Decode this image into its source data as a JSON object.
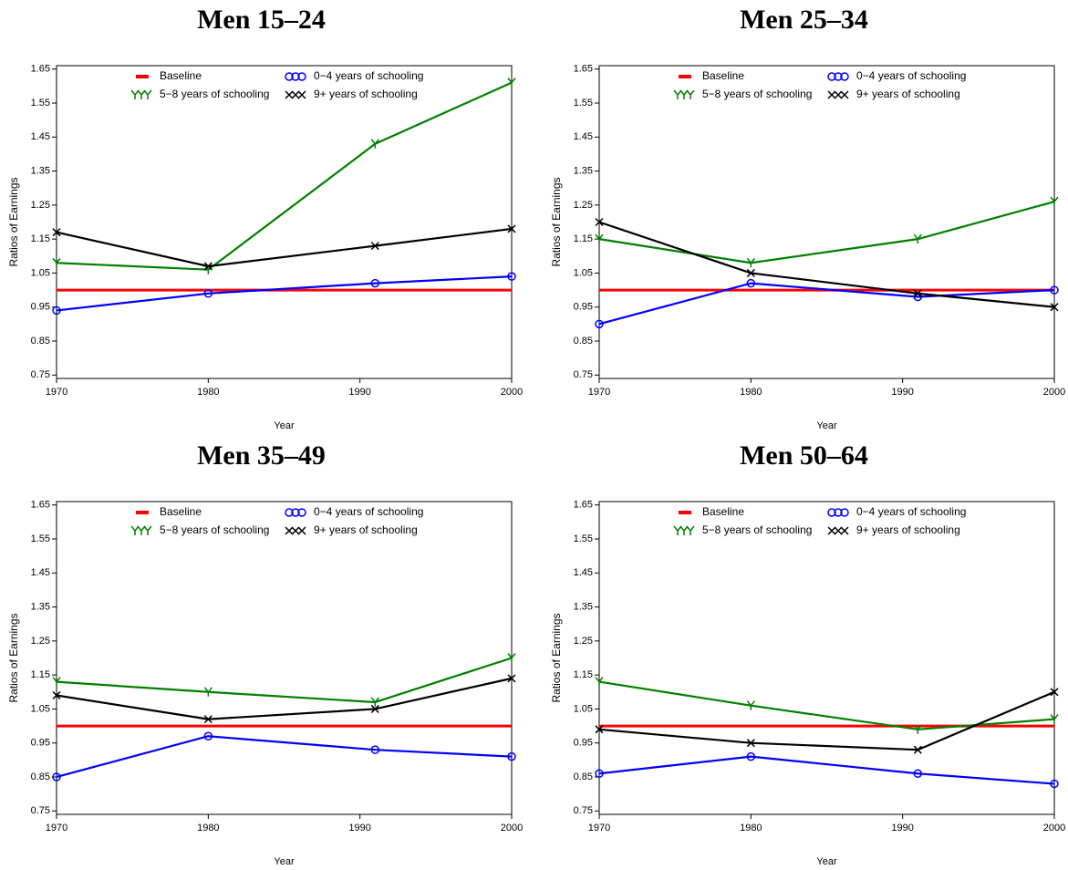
{
  "chart_data": [
    {
      "type": "line",
      "title": "Men 15–24",
      "x_label": "Year",
      "y_label": "Ratios of Earnings",
      "x": [
        1970,
        1980,
        1991,
        2000
      ],
      "xlim": [
        1970,
        2000
      ],
      "xticks": [
        1970,
        1980,
        1990,
        2000
      ],
      "ylim": [
        0.74,
        1.66
      ],
      "yticks": [
        0.75,
        0.85,
        0.95,
        1.05,
        1.15,
        1.25,
        1.35,
        1.45,
        1.55,
        1.65
      ],
      "legend": "top",
      "series": [
        {
          "name": "Baseline",
          "color": "#ff0000",
          "marker": "none",
          "values": [
            1.0,
            1.0,
            1.0,
            1.0
          ]
        },
        {
          "name": "0−4 years of schooling",
          "color": "#0000ff",
          "marker": "circle",
          "values": [
            0.94,
            0.99,
            1.02,
            1.04
          ]
        },
        {
          "name": "5−8 years of schooling",
          "color": "#008000",
          "marker": "y",
          "values": [
            1.08,
            1.06,
            1.43,
            1.61
          ]
        },
        {
          "name": "9+ years of schooling",
          "color": "#000000",
          "marker": "x",
          "values": [
            1.17,
            1.07,
            1.13,
            1.18
          ]
        }
      ]
    },
    {
      "type": "line",
      "title": "Men 25–34",
      "x_label": "Year",
      "y_label": "Ratios of Earnings",
      "x": [
        1970,
        1980,
        1991,
        2000
      ],
      "xlim": [
        1970,
        2000
      ],
      "xticks": [
        1970,
        1980,
        1990,
        2000
      ],
      "ylim": [
        0.74,
        1.66
      ],
      "yticks": [
        0.75,
        0.85,
        0.95,
        1.05,
        1.15,
        1.25,
        1.35,
        1.45,
        1.55,
        1.65
      ],
      "legend": "top",
      "series": [
        {
          "name": "Baseline",
          "color": "#ff0000",
          "marker": "none",
          "values": [
            1.0,
            1.0,
            1.0,
            1.0
          ]
        },
        {
          "name": "0−4 years of schooling",
          "color": "#0000ff",
          "marker": "circle",
          "values": [
            0.9,
            1.02,
            0.98,
            1.0
          ]
        },
        {
          "name": "5−8 years of schooling",
          "color": "#008000",
          "marker": "y",
          "values": [
            1.15,
            1.08,
            1.15,
            1.26
          ]
        },
        {
          "name": "9+ years of schooling",
          "color": "#000000",
          "marker": "x",
          "values": [
            1.2,
            1.05,
            0.99,
            0.95
          ]
        }
      ]
    },
    {
      "type": "line",
      "title": "Men 35–49",
      "x_label": "Year",
      "y_label": "Ratios of Earnings",
      "x": [
        1970,
        1980,
        1991,
        2000
      ],
      "xlim": [
        1970,
        2000
      ],
      "xticks": [
        1970,
        1980,
        1990,
        2000
      ],
      "ylim": [
        0.74,
        1.66
      ],
      "yticks": [
        0.75,
        0.85,
        0.95,
        1.05,
        1.15,
        1.25,
        1.35,
        1.45,
        1.55,
        1.65
      ],
      "legend": "top",
      "series": [
        {
          "name": "Baseline",
          "color": "#ff0000",
          "marker": "none",
          "values": [
            1.0,
            1.0,
            1.0,
            1.0
          ]
        },
        {
          "name": "0−4 years of schooling",
          "color": "#0000ff",
          "marker": "circle",
          "values": [
            0.85,
            0.97,
            0.93,
            0.91
          ]
        },
        {
          "name": "5−8 years of schooling",
          "color": "#008000",
          "marker": "y",
          "values": [
            1.13,
            1.1,
            1.07,
            1.2
          ]
        },
        {
          "name": "9+ years of schooling",
          "color": "#000000",
          "marker": "x",
          "values": [
            1.09,
            1.02,
            1.05,
            1.14
          ]
        }
      ]
    },
    {
      "type": "line",
      "title": "Men 50–64",
      "x_label": "Year",
      "y_label": "Ratios of Earnings",
      "x": [
        1970,
        1980,
        1991,
        2000
      ],
      "xlim": [
        1970,
        2000
      ],
      "xticks": [
        1970,
        1980,
        1990,
        2000
      ],
      "ylim": [
        0.74,
        1.66
      ],
      "yticks": [
        0.75,
        0.85,
        0.95,
        1.05,
        1.15,
        1.25,
        1.35,
        1.45,
        1.55,
        1.65
      ],
      "legend": "top",
      "series": [
        {
          "name": "Baseline",
          "color": "#ff0000",
          "marker": "none",
          "values": [
            1.0,
            1.0,
            1.0,
            1.0
          ]
        },
        {
          "name": "0−4 years of schooling",
          "color": "#0000ff",
          "marker": "circle",
          "values": [
            0.86,
            0.91,
            0.86,
            0.83
          ]
        },
        {
          "name": "5−8 years of schooling",
          "color": "#008000",
          "marker": "y",
          "values": [
            1.13,
            1.06,
            0.99,
            1.02
          ]
        },
        {
          "name": "9+ years of schooling",
          "color": "#000000",
          "marker": "x",
          "values": [
            0.99,
            0.95,
            0.93,
            1.1
          ]
        }
      ]
    }
  ]
}
